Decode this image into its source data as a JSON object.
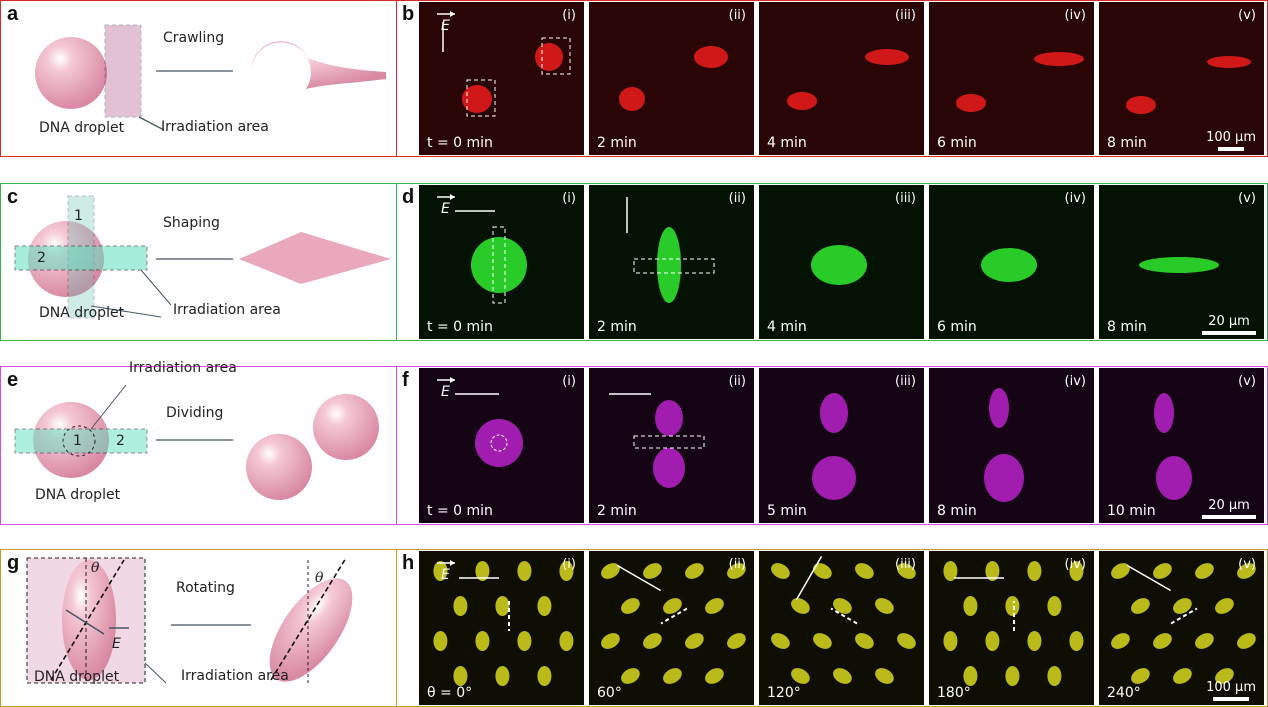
{
  "colors": {
    "a": "#d62a2a",
    "c": "#30b84e",
    "e": "#e048e0",
    "g": "#c99a28",
    "red": "#d01818",
    "green": "#2ee02e",
    "magenta": "#b020c0",
    "yellow": "#d8d820"
  },
  "schematics": [
    {
      "label": "a",
      "droplet": "DNA droplet",
      "area": "Irradiation area",
      "action": "Crawling"
    },
    {
      "label": "c",
      "droplet": "DNA droplet",
      "area": "Irradiation area",
      "action": "Shaping",
      "n1": "1",
      "n2": "2"
    },
    {
      "label": "e",
      "droplet": "DNA droplet",
      "area": "Irradiation area",
      "action": "Dividing",
      "n1": "1",
      "n2": "2"
    },
    {
      "label": "g",
      "droplet": "DNA droplet",
      "area": "Irradiation area",
      "action": "Rotating",
      "theta": "θ",
      "field": "E"
    }
  ],
  "micrographs": [
    {
      "label": "b",
      "field": "E",
      "scale": "100 µm",
      "tiles": [
        {
          "num": "(i)",
          "time": "t = 0 min"
        },
        {
          "num": "(ii)",
          "time": "2 min"
        },
        {
          "num": "(iii)",
          "time": "4 min"
        },
        {
          "num": "(iv)",
          "time": "6 min"
        },
        {
          "num": "(v)",
          "time": "8 min"
        }
      ]
    },
    {
      "label": "d",
      "field": "E",
      "scale": "20 µm",
      "tiles": [
        {
          "num": "(i)",
          "time": "t = 0 min"
        },
        {
          "num": "(ii)",
          "time": "2 min"
        },
        {
          "num": "(iii)",
          "time": "4 min"
        },
        {
          "num": "(iv)",
          "time": "6 min"
        },
        {
          "num": "(v)",
          "time": "8 min"
        }
      ]
    },
    {
      "label": "f",
      "field": "E",
      "scale": "20 µm",
      "tiles": [
        {
          "num": "(i)",
          "time": "t = 0 min"
        },
        {
          "num": "(ii)",
          "time": "2 min"
        },
        {
          "num": "(iii)",
          "time": "5 min"
        },
        {
          "num": "(iv)",
          "time": "8 min"
        },
        {
          "num": "(v)",
          "time": "10 min"
        }
      ]
    },
    {
      "label": "h",
      "field": "E",
      "scale": "100 µm",
      "tiles": [
        {
          "num": "(i)",
          "time": "θ = 0°"
        },
        {
          "num": "(ii)",
          "time": "60°"
        },
        {
          "num": "(iii)",
          "time": "120°"
        },
        {
          "num": "(iv)",
          "time": "180°"
        },
        {
          "num": "(v)",
          "time": "240°"
        }
      ]
    }
  ]
}
